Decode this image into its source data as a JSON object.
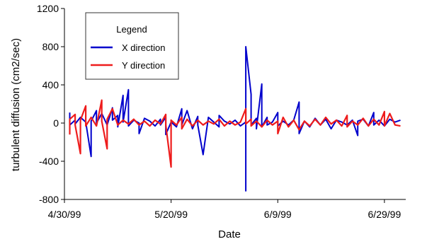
{
  "chart_data": {
    "type": "line",
    "xlabel": "Date",
    "ylabel": "turbulent diffusion (cm2/sec)",
    "xlim": [
      "1999-04-30",
      "1999-07-03"
    ],
    "ylim": [
      -800,
      1200
    ],
    "yticks": [
      -800,
      -400,
      0,
      400,
      800,
      1200
    ],
    "ytick_labels": [
      "-800",
      "-400",
      "0",
      "400",
      "800",
      "1200"
    ],
    "xticks": [
      "1999-04-30",
      "1999-05-20",
      "1999-06-09",
      "1999-06-29"
    ],
    "xtick_labels": [
      "4/30/99",
      "5/20/99",
      "6/9/99",
      "6/29/99"
    ],
    "grid": false,
    "legend": {
      "title": "Legend",
      "placement": "top-left",
      "entries": [
        "X direction",
        "Y direction"
      ]
    },
    "series": [
      {
        "name": "X direction",
        "color": "#0000cc",
        "points": [
          [
            "1999-05-01",
            110
          ],
          [
            "1999-05-01",
            -20
          ],
          [
            "1999-05-02",
            30
          ],
          [
            "1999-05-02",
            -10
          ],
          [
            "1999-05-03",
            60
          ],
          [
            "1999-05-04",
            10
          ],
          [
            "1999-05-05",
            -350
          ],
          [
            "1999-05-05",
            20
          ],
          [
            "1999-05-06",
            130
          ],
          [
            "1999-05-06",
            0
          ],
          [
            "1999-05-07",
            100
          ],
          [
            "1999-05-08",
            -20
          ],
          [
            "1999-05-09",
            160
          ],
          [
            "1999-05-09",
            30
          ],
          [
            "1999-05-10",
            80
          ],
          [
            "1999-05-10",
            -40
          ],
          [
            "1999-05-11",
            290
          ],
          [
            "1999-05-11",
            10
          ],
          [
            "1999-05-12",
            350
          ],
          [
            "1999-05-12",
            -30
          ],
          [
            "1999-05-13",
            30
          ],
          [
            "1999-05-14",
            0
          ],
          [
            "1999-05-14",
            -110
          ],
          [
            "1999-05-15",
            50
          ],
          [
            "1999-05-16",
            20
          ],
          [
            "1999-05-17",
            -30
          ],
          [
            "1999-05-18",
            40
          ],
          [
            "1999-05-18",
            -20
          ],
          [
            "1999-05-19",
            60
          ],
          [
            "1999-05-19",
            -120
          ],
          [
            "1999-05-20",
            10
          ],
          [
            "1999-05-21",
            -40
          ],
          [
            "1999-05-22",
            150
          ],
          [
            "1999-05-22",
            -20
          ],
          [
            "1999-05-23",
            130
          ],
          [
            "1999-05-24",
            -60
          ],
          [
            "1999-05-25",
            70
          ],
          [
            "1999-05-25",
            -20
          ],
          [
            "1999-05-26",
            -330
          ],
          [
            "1999-05-27",
            60
          ],
          [
            "1999-05-28",
            10
          ],
          [
            "1999-05-29",
            -40
          ],
          [
            "1999-05-29",
            80
          ],
          [
            "1999-05-30",
            20
          ],
          [
            "1999-05-31",
            -10
          ],
          [
            "1999-06-01",
            30
          ],
          [
            "1999-06-02",
            -30
          ],
          [
            "1999-06-03",
            10
          ],
          [
            "1999-06-03",
            -710
          ],
          [
            "1999-06-03",
            800
          ],
          [
            "1999-06-04",
            300
          ],
          [
            "1999-06-04",
            -20
          ],
          [
            "1999-06-05",
            50
          ],
          [
            "1999-06-05",
            -60
          ],
          [
            "1999-06-06",
            410
          ],
          [
            "1999-06-06",
            -40
          ],
          [
            "1999-06-07",
            60
          ],
          [
            "1999-06-07",
            -20
          ],
          [
            "1999-06-08",
            10
          ],
          [
            "1999-06-09",
            110
          ],
          [
            "1999-06-09",
            -30
          ],
          [
            "1999-06-10",
            20
          ],
          [
            "1999-06-11",
            -20
          ],
          [
            "1999-06-12",
            30
          ],
          [
            "1999-06-13",
            220
          ],
          [
            "1999-06-13",
            -110
          ],
          [
            "1999-06-14",
            20
          ],
          [
            "1999-06-15",
            -40
          ],
          [
            "1999-06-16",
            50
          ],
          [
            "1999-06-17",
            -20
          ],
          [
            "1999-06-18",
            40
          ],
          [
            "1999-06-19",
            -60
          ],
          [
            "1999-06-20",
            30
          ],
          [
            "1999-06-21",
            10
          ],
          [
            "1999-06-22",
            -20
          ],
          [
            "1999-06-23",
            30
          ],
          [
            "1999-06-24",
            -130
          ],
          [
            "1999-06-24",
            20
          ],
          [
            "1999-06-25",
            40
          ],
          [
            "1999-06-26",
            -30
          ],
          [
            "1999-06-27",
            110
          ],
          [
            "1999-06-27",
            -20
          ],
          [
            "1999-06-28",
            30
          ],
          [
            "1999-06-29",
            -30
          ],
          [
            "1999-06-30",
            40
          ],
          [
            "1999-07-01",
            10
          ],
          [
            "1999-07-02",
            30
          ]
        ]
      },
      {
        "name": "Y direction",
        "color": "#ee1c1c",
        "points": [
          [
            "1999-05-01",
            -120
          ],
          [
            "1999-05-01",
            40
          ],
          [
            "1999-05-02",
            90
          ],
          [
            "1999-05-02",
            -20
          ],
          [
            "1999-05-03",
            -320
          ],
          [
            "1999-05-03",
            30
          ],
          [
            "1999-05-04",
            180
          ],
          [
            "1999-05-04",
            -30
          ],
          [
            "1999-05-05",
            60
          ],
          [
            "1999-05-06",
            -30
          ],
          [
            "1999-05-07",
            240
          ],
          [
            "1999-05-07",
            20
          ],
          [
            "1999-05-08",
            -270
          ],
          [
            "1999-05-08",
            40
          ],
          [
            "1999-05-09",
            150
          ],
          [
            "1999-05-10",
            -20
          ],
          [
            "1999-05-11",
            30
          ],
          [
            "1999-05-12",
            -10
          ],
          [
            "1999-05-13",
            40
          ],
          [
            "1999-05-14",
            -20
          ],
          [
            "1999-05-15",
            20
          ],
          [
            "1999-05-16",
            -30
          ],
          [
            "1999-05-17",
            30
          ],
          [
            "1999-05-18",
            -10
          ],
          [
            "1999-05-19",
            90
          ],
          [
            "1999-05-19",
            -20
          ],
          [
            "1999-05-20",
            -460
          ],
          [
            "1999-05-20",
            30
          ],
          [
            "1999-05-21",
            -20
          ],
          [
            "1999-05-22",
            60
          ],
          [
            "1999-05-22",
            -60
          ],
          [
            "1999-05-23",
            40
          ],
          [
            "1999-05-24",
            -30
          ],
          [
            "1999-05-25",
            30
          ],
          [
            "1999-05-26",
            -20
          ],
          [
            "1999-05-27",
            20
          ],
          [
            "1999-05-28",
            -10
          ],
          [
            "1999-05-29",
            40
          ],
          [
            "1999-05-30",
            -30
          ],
          [
            "1999-05-31",
            20
          ],
          [
            "1999-06-01",
            -20
          ],
          [
            "1999-06-02",
            10
          ],
          [
            "1999-06-03",
            150
          ],
          [
            "1999-06-03",
            -10
          ],
          [
            "1999-06-04",
            40
          ],
          [
            "1999-06-04",
            -30
          ],
          [
            "1999-06-05",
            20
          ],
          [
            "1999-06-06",
            -40
          ],
          [
            "1999-06-07",
            30
          ],
          [
            "1999-06-08",
            -20
          ],
          [
            "1999-06-09",
            20
          ],
          [
            "1999-06-09",
            -110
          ],
          [
            "1999-06-10",
            60
          ],
          [
            "1999-06-11",
            -40
          ],
          [
            "1999-06-12",
            30
          ],
          [
            "1999-06-13",
            -70
          ],
          [
            "1999-06-14",
            20
          ],
          [
            "1999-06-15",
            -30
          ],
          [
            "1999-06-16",
            40
          ],
          [
            "1999-06-17",
            -20
          ],
          [
            "1999-06-18",
            60
          ],
          [
            "1999-06-19",
            -10
          ],
          [
            "1999-06-20",
            30
          ],
          [
            "1999-06-21",
            -30
          ],
          [
            "1999-06-22",
            80
          ],
          [
            "1999-06-22",
            -40
          ],
          [
            "1999-06-23",
            20
          ],
          [
            "1999-06-24",
            -20
          ],
          [
            "1999-06-25",
            50
          ],
          [
            "1999-06-26",
            -30
          ],
          [
            "1999-06-27",
            40
          ],
          [
            "1999-06-28",
            -20
          ],
          [
            "1999-06-29",
            120
          ],
          [
            "1999-06-29",
            -30
          ],
          [
            "1999-06-30",
            100
          ],
          [
            "1999-07-01",
            -20
          ],
          [
            "1999-07-02",
            -30
          ]
        ]
      }
    ]
  }
}
